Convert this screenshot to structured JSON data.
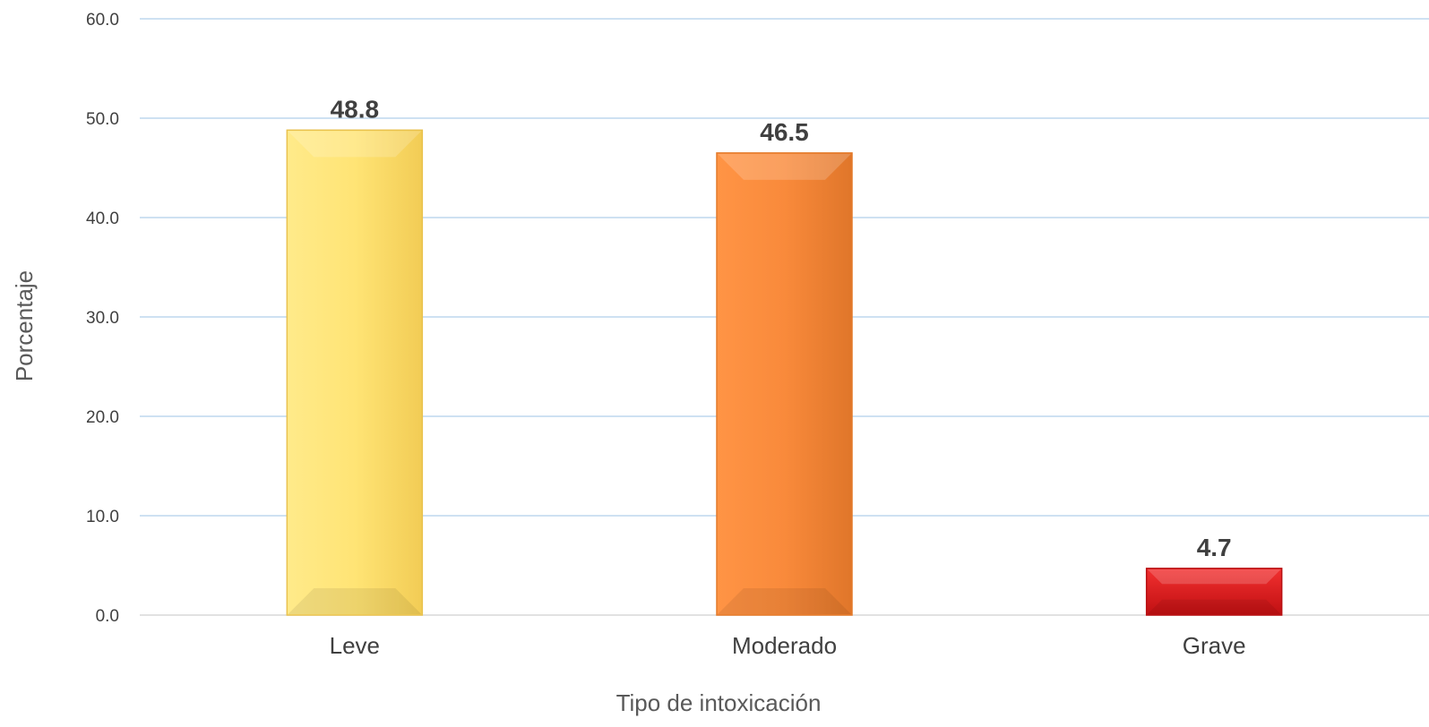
{
  "chart_data": {
    "type": "bar",
    "title": "",
    "xlabel": "Tipo de intoxicación",
    "ylabel": "Porcentaje",
    "categories": [
      "Leve",
      "Moderado",
      "Grave"
    ],
    "values": [
      48.8,
      46.5,
      4.7
    ],
    "value_labels": [
      "48.8",
      "46.5",
      "4.7"
    ],
    "ylim": [
      0,
      60
    ],
    "yticks": [
      0,
      10,
      20,
      30,
      40,
      50,
      60
    ],
    "ytick_labels": [
      "0.0",
      "10.0",
      "20.0",
      "30.0",
      "40.0",
      "50.0",
      "60.0"
    ],
    "grid": true,
    "legend": "none",
    "colors": {
      "bars": [
        "#FFE475",
        "#F98A3B",
        "#E41A1C"
      ],
      "bar_edges": [
        "#E9C24E",
        "#E47A2A",
        "#B81012"
      ],
      "gridline": "#BDD7EE",
      "baseline": "#D9D9D9"
    }
  }
}
